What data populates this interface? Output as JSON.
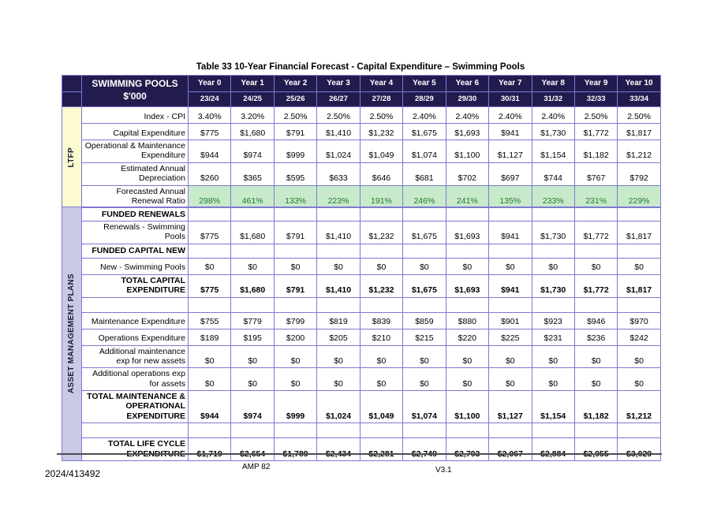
{
  "page": {
    "title": "Table 33 10-Year Financial Forecast - Capital Expenditure – Swimming Pools",
    "footer": {
      "left": "2024/413492",
      "center": "AMP 82",
      "right": "V3.1"
    }
  },
  "colors": {
    "header_bg": "#211C4D",
    "border": "#7E78D2",
    "ltfp_bg": "#FCFACF",
    "amp_bg": "#C9C9E6",
    "ratio_bg": "#C8EACB",
    "ratio_text": "#1F7A28"
  },
  "table1": {
    "side_label": "LTFP",
    "header": {
      "title_line1": "SWIMMING POOLS",
      "title_line2": "$'000",
      "years": [
        "Year 0",
        "Year 1",
        "Year 2",
        "Year 3",
        "Year 4",
        "Year 5",
        "Year 6",
        "Year 7",
        "Year 8",
        "Year 9",
        "Year 10"
      ],
      "fy": [
        "23/24",
        "24/25",
        "25/26",
        "26/27",
        "27/28",
        "28/29",
        "29/30",
        "30/31",
        "31/32",
        "32/33",
        "33/34"
      ]
    },
    "rows": [
      {
        "kind": "data",
        "label": "Index - CPI",
        "values": [
          "3.40%",
          "3.20%",
          "2.50%",
          "2.50%",
          "2.50%",
          "2.40%",
          "2.40%",
          "2.40%",
          "2.40%",
          "2.50%",
          "2.50%"
        ]
      },
      {
        "kind": "data",
        "label": "Capital Expenditure",
        "values": [
          "$775",
          "$1,680",
          "$791",
          "$1,410",
          "$1,232",
          "$1,675",
          "$1,693",
          "$941",
          "$1,730",
          "$1,772",
          "$1,817"
        ]
      },
      {
        "kind": "data",
        "label": "Operational & Maintenance Expenditure",
        "values": [
          "$944",
          "$974",
          "$999",
          "$1,024",
          "$1,049",
          "$1,074",
          "$1,100",
          "$1,127",
          "$1,154",
          "$1,182",
          "$1,212"
        ]
      },
      {
        "kind": "data",
        "label": "Estimated Annual Depreciation",
        "values": [
          "$260",
          "$365",
          "$595",
          "$633",
          "$646",
          "$681",
          "$702",
          "$697",
          "$744",
          "$767",
          "$792"
        ]
      },
      {
        "kind": "ratio",
        "label": "Forecasted Annual Renewal Ratio",
        "values": [
          "298%",
          "461%",
          "133%",
          "223%",
          "191%",
          "246%",
          "241%",
          "135%",
          "233%",
          "231%",
          "229%"
        ]
      }
    ]
  },
  "table2": {
    "side_label": "ASSET MANAGEMENT PLANS",
    "rows": [
      {
        "kind": "section",
        "label": "FUNDED RENEWALS",
        "values": []
      },
      {
        "kind": "data",
        "label": "Renewals - Swimming Pools",
        "values": [
          "$775",
          "$1,680",
          "$791",
          "$1,410",
          "$1,232",
          "$1,675",
          "$1,693",
          "$941",
          "$1,730",
          "$1,772",
          "$1,817"
        ]
      },
      {
        "kind": "section",
        "label": "FUNDED CAPITAL NEW",
        "values": []
      },
      {
        "kind": "data",
        "label": "New - Swimming Pools",
        "values": [
          "$0",
          "$0",
          "$0",
          "$0",
          "$0",
          "$0",
          "$0",
          "$0",
          "$0",
          "$0",
          "$0"
        ]
      },
      {
        "kind": "total",
        "label": "TOTAL CAPITAL EXPENDITURE",
        "values": [
          "$775",
          "$1,680",
          "$791",
          "$1,410",
          "$1,232",
          "$1,675",
          "$1,693",
          "$941",
          "$1,730",
          "$1,772",
          "$1,817"
        ]
      },
      {
        "kind": "blank",
        "label": "",
        "values": []
      },
      {
        "kind": "data",
        "label": "Maintenance Expenditure",
        "values": [
          "$755",
          "$779",
          "$799",
          "$819",
          "$839",
          "$859",
          "$880",
          "$901",
          "$923",
          "$946",
          "$970"
        ]
      },
      {
        "kind": "data",
        "label": "Operations Expenditure",
        "values": [
          "$189",
          "$195",
          "$200",
          "$205",
          "$210",
          "$215",
          "$220",
          "$225",
          "$231",
          "$236",
          "$242"
        ]
      },
      {
        "kind": "data",
        "label": "Additional maintenance exp for new assets",
        "values": [
          "$0",
          "$0",
          "$0",
          "$0",
          "$0",
          "$0",
          "$0",
          "$0",
          "$0",
          "$0",
          "$0"
        ]
      },
      {
        "kind": "data",
        "label": "Additional operations exp for assets",
        "values": [
          "$0",
          "$0",
          "$0",
          "$0",
          "$0",
          "$0",
          "$0",
          "$0",
          "$0",
          "$0",
          "$0"
        ]
      },
      {
        "kind": "total",
        "label": "TOTAL MAINTENANCE & OPERATIONAL EXPENDITURE",
        "values": [
          "$944",
          "$974",
          "$999",
          "$1,024",
          "$1,049",
          "$1,074",
          "$1,100",
          "$1,127",
          "$1,154",
          "$1,182",
          "$1,212"
        ]
      },
      {
        "kind": "blank",
        "label": "",
        "values": []
      },
      {
        "kind": "total",
        "label": "TOTAL LIFE CYCLE EXPENDITURE",
        "values": [
          "$1,719",
          "$2,654",
          "$1,789",
          "$2,434",
          "$2,281",
          "$2,749",
          "$2,793",
          "$2,067",
          "$2,884",
          "$2,955",
          "$3,029"
        ]
      }
    ]
  }
}
